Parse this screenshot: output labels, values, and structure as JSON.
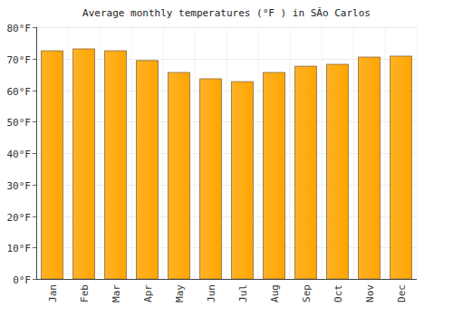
{
  "chart_data": {
    "type": "bar",
    "title": "Average monthly temperatures (°F ) in SÃo Carlos",
    "categories": [
      "Jan",
      "Feb",
      "Mar",
      "Apr",
      "May",
      "Jun",
      "Jul",
      "Aug",
      "Sep",
      "Oct",
      "Nov",
      "Dec"
    ],
    "values": [
      72.5,
      73.1,
      72.5,
      69.4,
      65.6,
      63.6,
      62.7,
      65.6,
      67.6,
      68.2,
      70.5,
      70.8
    ],
    "color": "#ffa500",
    "ylim": [
      0,
      80
    ],
    "yticks": [
      {
        "value": 0,
        "label": "0°F"
      },
      {
        "value": 10,
        "label": "10°F"
      },
      {
        "value": 20,
        "label": "20°F"
      },
      {
        "value": 30,
        "label": "30°F"
      },
      {
        "value": 40,
        "label": "40°F"
      },
      {
        "value": 50,
        "label": "50°F"
      },
      {
        "value": 60,
        "label": "60°F"
      },
      {
        "value": 70,
        "label": "70°F"
      },
      {
        "value": 80,
        "label": "80°F"
      }
    ],
    "grid": true
  }
}
